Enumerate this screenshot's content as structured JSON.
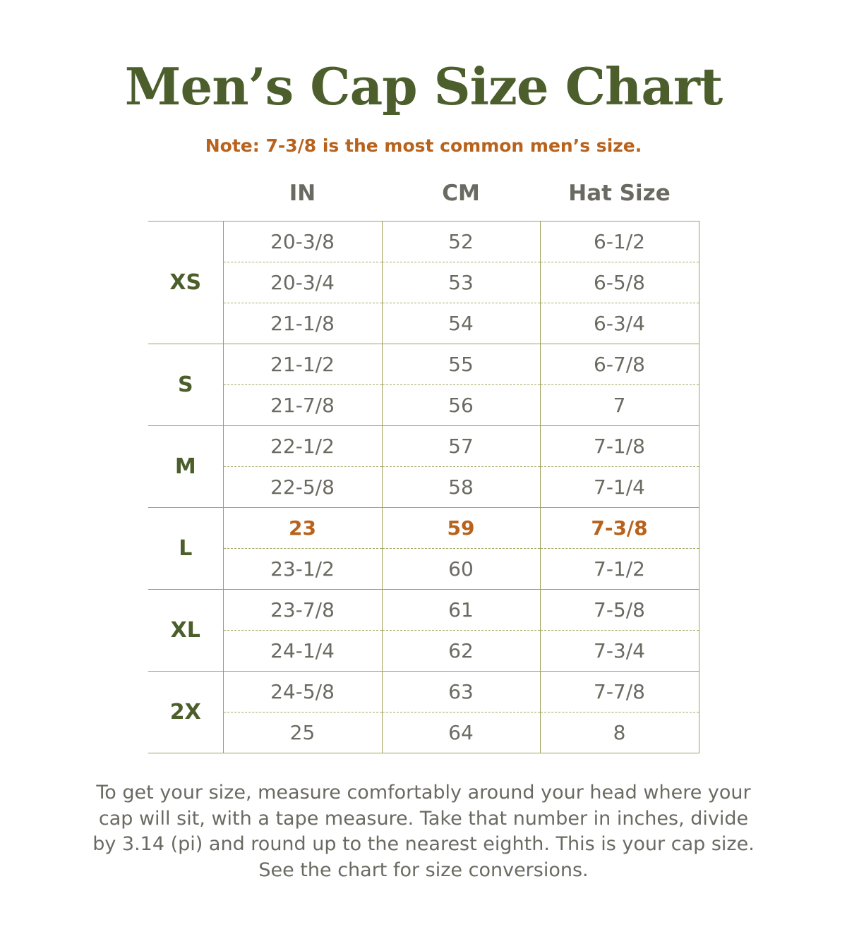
{
  "title": "Men’s Cap Size Chart",
  "note": "Note: 7-3/8 is the most common men’s size.",
  "columns": [
    "IN",
    "CM",
    "Hat Size"
  ],
  "groups": [
    {
      "size": "XS",
      "rows": [
        [
          "20-3/8",
          "52",
          "6-1/2"
        ],
        [
          "20-3/4",
          "53",
          "6-5/8"
        ],
        [
          "21-1/8",
          "54",
          "6-3/4"
        ]
      ]
    },
    {
      "size": "S",
      "rows": [
        [
          "21-1/2",
          "55",
          "6-7/8"
        ],
        [
          "21-7/8",
          "56",
          "7"
        ]
      ]
    },
    {
      "size": "M",
      "rows": [
        [
          "22-1/2",
          "57",
          "7-1/8"
        ],
        [
          "22-5/8",
          "58",
          "7-1/4"
        ]
      ]
    },
    {
      "size": "L",
      "rows": [
        [
          "23",
          "59",
          "7-3/8"
        ],
        [
          "23-1/2",
          "60",
          "7-1/2"
        ]
      ]
    },
    {
      "size": "XL",
      "rows": [
        [
          "23-7/8",
          "61",
          "7-5/8"
        ],
        [
          "24-1/4",
          "62",
          "7-3/4"
        ]
      ]
    },
    {
      "size": "2X",
      "rows": [
        [
          "24-5/8",
          "63",
          "7-7/8"
        ],
        [
          "25",
          "64",
          "8"
        ]
      ]
    }
  ],
  "highlight": {
    "value": "7-3/8",
    "color": "#b8621c"
  },
  "colors": {
    "title": "#4b5e2b",
    "accent": "#b8621c",
    "text": "#6b6a62",
    "rule": "#9ea05a"
  },
  "instructions": [
    "To get your size, measure comfortably around your head where your",
    "cap will sit, with a tape measure. Take that number in inches, divide",
    "by 3.14 (pi) and round up to the nearest eighth. This is your cap size.",
    "See the chart for size conversions."
  ]
}
